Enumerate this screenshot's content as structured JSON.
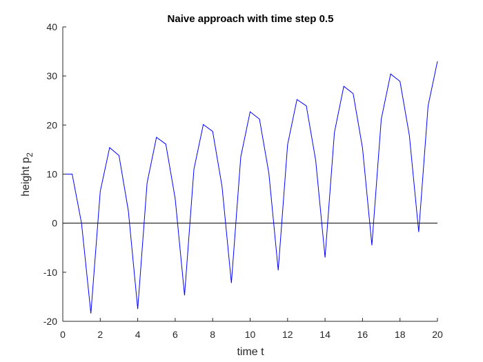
{
  "chart_data": {
    "type": "line",
    "title": "Naive approach with time step 0.5",
    "xlabel": "time t",
    "ylabel_main": "height p",
    "ylabel_sub": "2",
    "xlim": [
      0,
      20
    ],
    "ylim": [
      -20,
      40
    ],
    "xticks": [
      "0",
      "2",
      "4",
      "6",
      "8",
      "10",
      "12",
      "14",
      "16",
      "18",
      "20"
    ],
    "yticks": [
      "-20",
      "-10",
      "0",
      "10",
      "20",
      "30",
      "40"
    ],
    "grid": false,
    "series": [
      {
        "color": "#0000ff",
        "x": [
          0,
          0.5,
          1,
          1.5,
          2,
          2.5,
          3,
          3.5,
          4,
          4.5,
          5,
          5.5,
          6,
          6.5,
          7,
          7.5,
          8,
          8.5,
          9,
          9.5,
          10,
          10.5,
          11,
          11.5,
          12,
          12.5,
          13,
          13.5,
          14,
          14.5,
          15,
          15.5,
          16,
          16.5,
          17,
          17.5,
          18,
          18.5,
          19,
          19.5,
          20
        ],
        "y": [
          10,
          10,
          0,
          -18.4,
          6.5,
          15.4,
          13.8,
          2.5,
          -17.5,
          8.2,
          17.5,
          16.1,
          5,
          -14.7,
          11,
          20.1,
          18.7,
          7.5,
          -12.2,
          13.5,
          22.7,
          21.2,
          10.2,
          -9.6,
          16,
          25.2,
          23.9,
          12.8,
          -7,
          18.5,
          27.9,
          26.4,
          15.3,
          -4.5,
          21.2,
          30.4,
          28.9,
          17.9,
          -1.8,
          23.9,
          33
        ]
      }
    ],
    "reference_line": {
      "y": 0,
      "color": "#000000"
    },
    "frame_color": "#262626"
  }
}
